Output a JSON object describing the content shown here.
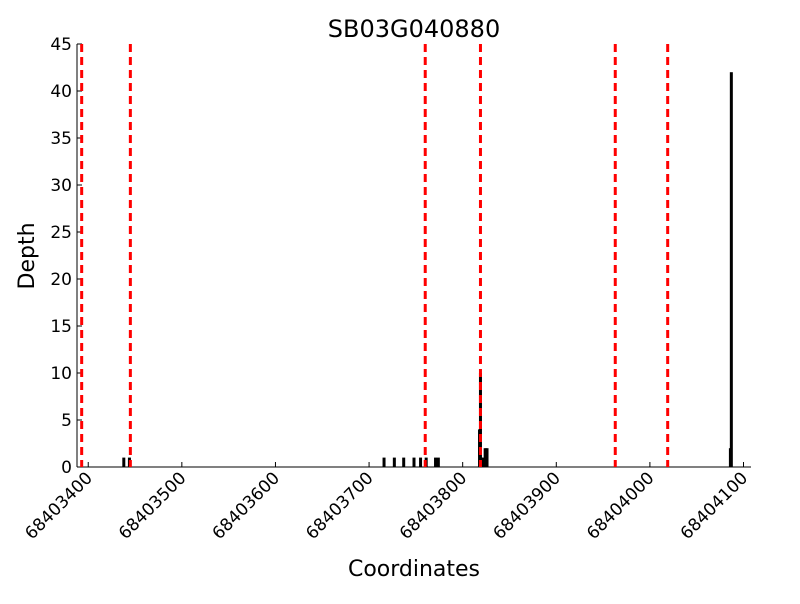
{
  "chart_data": {
    "type": "bar",
    "title": "SB03G040880",
    "xlabel": "Coordinates",
    "ylabel": "Depth",
    "xlim": [
      68403388,
      68404108
    ],
    "ylim": [
      0,
      45
    ],
    "yticks": [
      0,
      5,
      10,
      15,
      20,
      25,
      30,
      35,
      40,
      45
    ],
    "xticks": [
      68403400,
      68403500,
      68403600,
      68403700,
      68403800,
      68403900,
      68404000,
      68404100
    ],
    "xtick_labels": [
      "68403400",
      "68403500",
      "68403600",
      "68403700",
      "68403800",
      "68403900",
      "68404000",
      "68404100"
    ],
    "grid": false,
    "legend": "none",
    "colors": {
      "bars": "#000000",
      "markers": "#ff0000"
    },
    "series": [
      {
        "type": "bar",
        "x": [
          68403438,
          68403444,
          68403716,
          68403727,
          68403737,
          68403748,
          68403755,
          68403761,
          68403771,
          68403774,
          68403818,
          68403819,
          68403820,
          68403822,
          68403824,
          68403826,
          68404086,
          68404087
        ],
        "values": [
          1,
          1,
          1,
          1,
          1,
          1,
          1,
          1,
          1,
          1,
          4,
          10,
          1,
          1,
          2,
          2,
          2,
          42
        ]
      }
    ],
    "markers": {
      "style": "dashed",
      "x": [
        68403393,
        68403445,
        68403760,
        68403819,
        68403963,
        68404019
      ]
    }
  }
}
